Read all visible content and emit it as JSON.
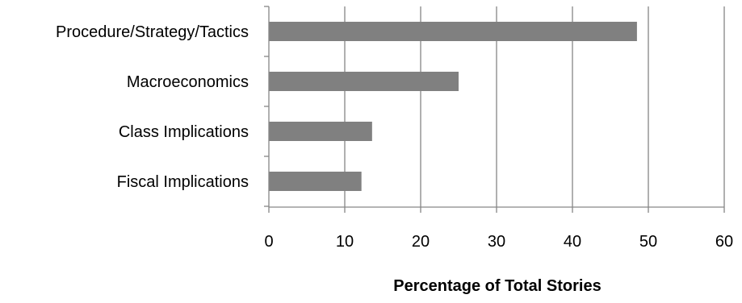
{
  "chart_data": {
    "type": "bar",
    "orientation": "horizontal",
    "title": "",
    "xlabel": "Percentage of Total Stories",
    "ylabel": "",
    "categories": [
      "Procedure/Strategy/Tactics",
      "Macroeconomics",
      "Class Implications",
      "Fiscal Implications"
    ],
    "values": [
      48.5,
      25.0,
      13.6,
      12.2
    ],
    "xlim": [
      0,
      60
    ],
    "xticks": [
      "0",
      "10",
      "20",
      "30",
      "40",
      "50",
      "60"
    ],
    "grid": true,
    "legend": "none"
  },
  "colors": {
    "bar": "#808080",
    "grid": "#868686",
    "axis": "#868686",
    "text": "#000000"
  }
}
